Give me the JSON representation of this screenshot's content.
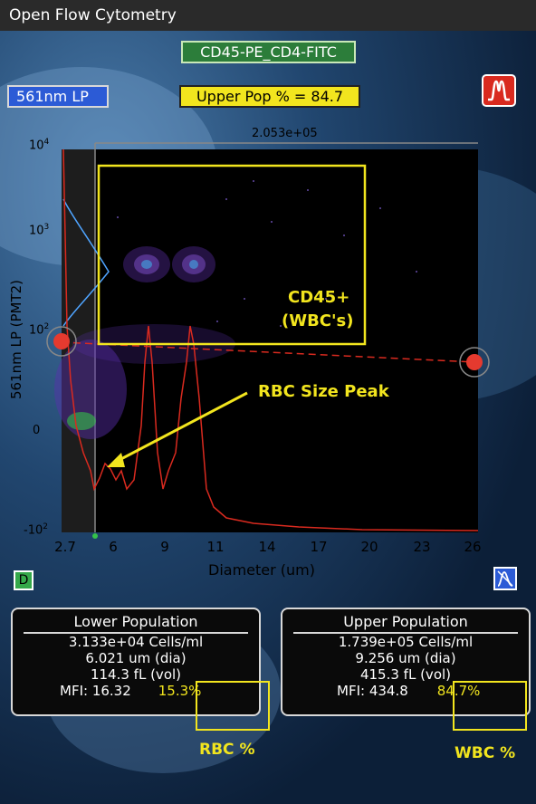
{
  "window": {
    "title": "Open Flow Cytometry"
  },
  "header": {
    "gate_label": "CD45-PE_CD4-FITC",
    "channel_label": "561nm LP",
    "upper_pop": "Upper Pop % = 84.7"
  },
  "plot": {
    "top_value": "2.053e+05",
    "y_axis_label": "561nm LP (PMT2)",
    "x_axis_label": "Diameter (um)",
    "x_ticks": [
      "2.7",
      "6",
      "9",
      "11",
      "14",
      "17",
      "20",
      "23",
      "26"
    ],
    "y_ticks": {
      "t4": "10",
      "t3": "10",
      "t2": "10",
      "t0": "0",
      "tm2": "-10"
    },
    "y_exp": {
      "t4": "4",
      "t3": "3",
      "t2": "2",
      "tm2": "2"
    },
    "annotation_gate": "CD45+",
    "annotation_gate2": "(WBC's)",
    "annotation_peak": "RBC Size Peak",
    "d_button": "D"
  },
  "lower": {
    "title": "Lower Population",
    "cells": "3.133e+04 Cells/ml",
    "dia": "6.021 um (dia)",
    "vol": "114.3 fL (vol)",
    "mfi": "MFI: 16.32",
    "pct": "15.3%",
    "caption": "RBC %"
  },
  "upper": {
    "title": "Upper Population",
    "cells": "1.739e+05 Cells/ml",
    "dia": "9.256 um (dia)",
    "vol": "415.3 fL (vol)",
    "mfi": "MFI: 434.8",
    "pct": "84.7%",
    "caption": "WBC %"
  },
  "colors": {
    "gate_green": "#2c7d3a",
    "channel_blue": "#2c5bd6",
    "yellow": "#f2e51e",
    "trace_red": "#d92a1f"
  }
}
